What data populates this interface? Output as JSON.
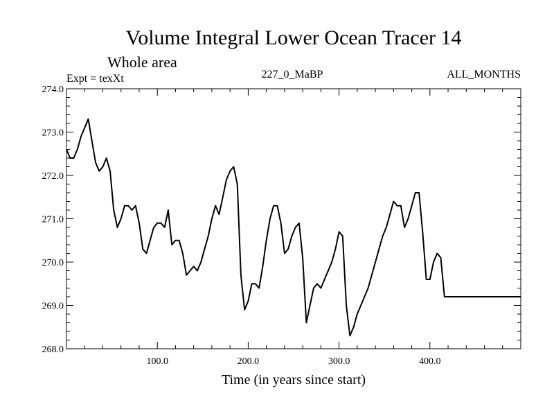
{
  "chart_data": {
    "type": "line",
    "title": "Volume Integral Lower Ocean Tracer 14",
    "subtitle": "Whole area",
    "left_label": "Expt = texXt",
    "center_label": "227_0_MaBP",
    "right_label": "ALL_MONTHS",
    "xlabel": "Time (in years since start)",
    "ylabel": "",
    "xlim": [
      0,
      500
    ],
    "ylim": [
      268.0,
      274.0
    ],
    "x_ticks": [
      100,
      200,
      300,
      400
    ],
    "x_tick_labels": [
      "100.0",
      "200.0",
      "300.0",
      "400.0"
    ],
    "y_ticks": [
      268,
      269,
      270,
      271,
      272,
      273,
      274
    ],
    "y_tick_labels": [
      "268.0",
      "269.0",
      "270.0",
      "271.0",
      "272.0",
      "273.0",
      "274.0"
    ],
    "series": [
      {
        "name": "Tracer 14",
        "x": [
          0,
          4,
          8,
          12,
          16,
          20,
          24,
          28,
          32,
          36,
          40,
          44,
          48,
          52,
          56,
          60,
          64,
          68,
          72,
          76,
          80,
          84,
          88,
          92,
          96,
          100,
          104,
          108,
          112,
          116,
          120,
          124,
          128,
          132,
          136,
          140,
          144,
          148,
          152,
          156,
          160,
          164,
          168,
          172,
          176,
          180,
          184,
          188,
          192,
          196,
          200,
          204,
          208,
          212,
          216,
          220,
          224,
          228,
          232,
          236,
          240,
          244,
          248,
          252,
          256,
          260,
          264,
          268,
          272,
          276,
          280,
          284,
          288,
          292,
          296,
          300,
          304,
          308,
          312,
          316,
          320,
          324,
          328,
          332,
          336,
          340,
          344,
          348,
          352,
          356,
          360,
          364,
          368,
          372,
          376,
          380,
          384,
          388,
          392,
          396,
          400,
          404,
          408,
          412,
          416,
          420,
          424,
          428,
          432,
          436,
          440,
          444,
          448,
          452,
          456,
          460,
          464,
          468,
          472,
          476,
          480,
          484,
          488,
          492,
          496,
          500
        ],
        "values": [
          272.6,
          272.4,
          272.4,
          272.6,
          272.9,
          273.1,
          273.3,
          272.8,
          272.3,
          272.1,
          272.2,
          272.4,
          272.1,
          271.2,
          270.8,
          271.0,
          271.3,
          271.3,
          271.2,
          271.3,
          270.9,
          270.3,
          270.2,
          270.5,
          270.8,
          270.9,
          270.9,
          270.8,
          271.2,
          270.4,
          270.5,
          270.5,
          270.2,
          269.7,
          269.8,
          269.9,
          269.8,
          270.0,
          270.3,
          270.6,
          271.0,
          271.3,
          271.1,
          271.5,
          271.9,
          272.1,
          272.2,
          271.8,
          269.7,
          268.9,
          269.1,
          269.5,
          269.5,
          269.4,
          269.9,
          270.5,
          271.0,
          271.3,
          271.3,
          270.9,
          270.2,
          270.3,
          270.6,
          270.8,
          270.9,
          270.1,
          268.6,
          269.0,
          269.4,
          269.5,
          269.4,
          269.6,
          269.8,
          270.0,
          270.3,
          270.7,
          270.6,
          269.0,
          268.3,
          268.5,
          268.8,
          269.0,
          269.2,
          269.4,
          269.7,
          270.0,
          270.3,
          270.6,
          270.8,
          271.1,
          271.4,
          271.3,
          271.3,
          270.8,
          271.0,
          271.3,
          271.6,
          271.6,
          270.7,
          269.6,
          269.6,
          270.0,
          270.2,
          270.1,
          269.2,
          269.2,
          269.2,
          269.2,
          269.2,
          269.2,
          269.2,
          269.2,
          269.2,
          269.2,
          269.2,
          269.2,
          269.2,
          269.2,
          269.2,
          269.2,
          269.2,
          269.2,
          269.2,
          269.2,
          269.2,
          269.2
        ]
      }
    ]
  }
}
